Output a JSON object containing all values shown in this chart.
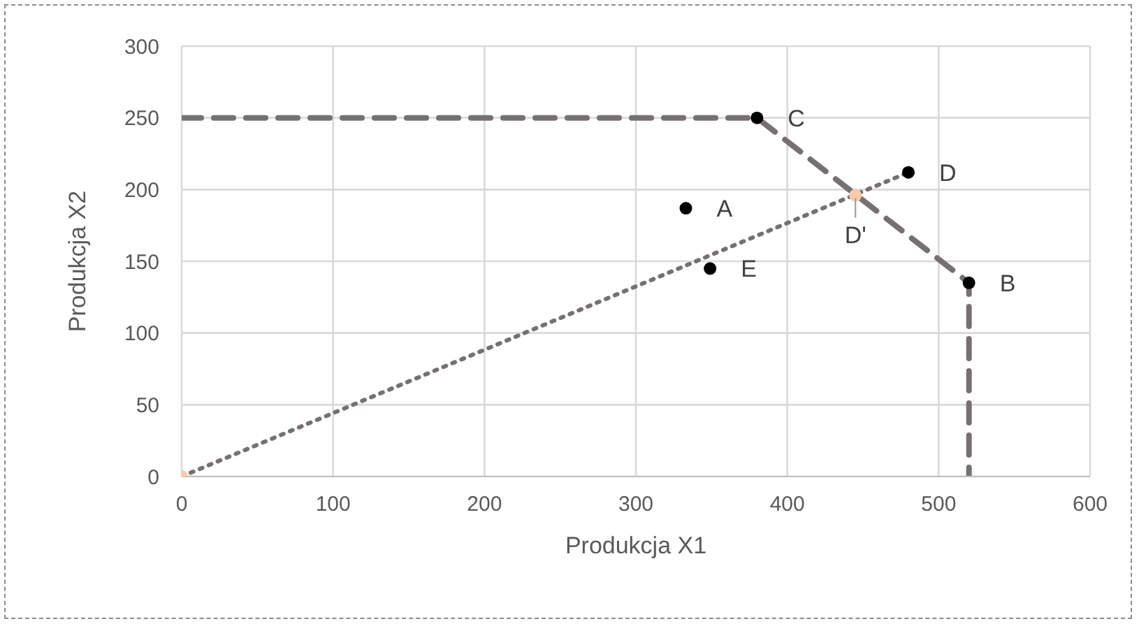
{
  "chart_data": {
    "type": "scatter",
    "xlabel": "Produkcja X1",
    "ylabel": "Produkcja X2",
    "xlim": [
      0,
      600
    ],
    "xticks": [
      0,
      100,
      200,
      300,
      400,
      500,
      600
    ],
    "ylim": [
      0,
      300
    ],
    "yticks": [
      0,
      50,
      100,
      150,
      200,
      250,
      300
    ],
    "grid": true,
    "series": [
      {
        "type": "line",
        "color": "#767171",
        "line_style": "dashed",
        "marker": "none",
        "x": [
          0,
          380,
          520,
          520
        ],
        "values": [
          250,
          250,
          135,
          0
        ]
      },
      {
        "type": "line",
        "color": "#767171",
        "line_style": "dotted",
        "marker": "none",
        "x": [
          0,
          480
        ],
        "values": [
          0,
          212
        ]
      },
      {
        "color": "#000000",
        "marker": "circle",
        "x": [
          333,
          520,
          380,
          480,
          349
        ],
        "values": [
          187,
          135,
          250,
          212,
          145
        ]
      },
      {
        "color": "#f8cbad",
        "marker": "circle",
        "x": [
          0,
          445
        ],
        "values": [
          0,
          196
        ]
      }
    ],
    "annotations": [
      {
        "text": "A",
        "x": 333,
        "y": 187
      },
      {
        "text": "B",
        "x": 520,
        "y": 135
      },
      {
        "text": "C",
        "x": 380,
        "y": 250
      },
      {
        "text": "D",
        "x": 480,
        "y": 212
      },
      {
        "text": "E",
        "x": 349,
        "y": 145
      },
      {
        "text": "D'",
        "x": 445,
        "y": 196
      }
    ]
  }
}
